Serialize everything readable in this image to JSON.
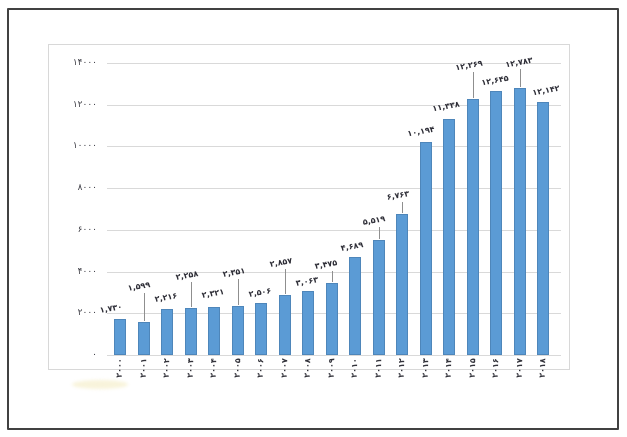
{
  "chart_data": {
    "type": "bar",
    "title": "",
    "xlabel": "",
    "ylabel": "",
    "grid": true,
    "legend": "none",
    "digit_script": "persian",
    "categories": [
      "۲۰۰۰",
      "۲۰۰۱",
      "۲۰۰۲",
      "۲۰۰۳",
      "۲۰۰۴",
      "۲۰۰۵",
      "۲۰۰۶",
      "۲۰۰۷",
      "۲۰۰۸",
      "۲۰۰۹",
      "۲۰۱۰",
      "۲۰۱۱",
      "۲۰۱۲",
      "۲۰۱۳",
      "۲۰۱۴",
      "۲۰۱۵",
      "۲۰۱۶",
      "۲۰۱۷",
      "۲۰۱۸"
    ],
    "categories_values": [
      2000,
      2001,
      2002,
      2003,
      2004,
      2005,
      2006,
      2007,
      2008,
      2009,
      2010,
      2011,
      2012,
      2013,
      2014,
      2015,
      2016,
      2017,
      2018
    ],
    "values": [
      1730,
      1599,
      2216,
      2258,
      2321,
      2351,
      2506,
      2857,
      3063,
      3475,
      4689,
      5519,
      6763,
      10194,
      11338,
      12269,
      12645,
      12783,
      12142
    ],
    "value_labels": [
      "۱,۷۳۰",
      "۱,۵۹۹",
      "۲,۲۱۶",
      "۲,۲۵۸",
      "۲,۳۲۱",
      "۲,۳۵۱",
      "۲,۵۰۶",
      "۲,۸۵۷",
      "۳,۰۶۳",
      "۳,۴۷۵",
      "۴,۶۸۹",
      "۵,۵۱۹",
      "۶,۷۶۳",
      "۱۰,۱۹۴",
      "۱۱,۳۳۸",
      "۱۲,۲۶۹",
      "۱۲,۶۴۵",
      "۱۲,۷۸۳",
      "۱۲,۱۴۲"
    ],
    "y_ticks": [
      0,
      2000,
      4000,
      6000,
      8000,
      10000,
      12000,
      14000
    ],
    "y_tick_labels": [
      "۰",
      "۲۰۰۰",
      "۴۰۰۰",
      "۶۰۰۰",
      "۸۰۰۰",
      "۱۰۰۰۰",
      "۱۲۰۰۰",
      "۱۴۰۰۰"
    ],
    "ylim": [
      0,
      14000
    ],
    "bar_color": "#5b9bd5",
    "gridline_color": "#d9d9d9",
    "text_color": "#2d2d36",
    "leader_color": "#8f8f8f",
    "label_layout": {
      "gaps": [
        5,
        30,
        6,
        27,
        8,
        28,
        5,
        27,
        4,
        13,
        5,
        14,
        13,
        5,
        7,
        28,
        5,
        20,
        6
      ],
      "dx": [
        -9,
        -5,
        -1,
        -4,
        -1,
        -4,
        -1,
        -4,
        -1,
        -6,
        -3,
        -5,
        -4,
        -5,
        -3,
        -4,
        -1,
        -1,
        3
      ],
      "leader_min_gap": 12
    }
  }
}
